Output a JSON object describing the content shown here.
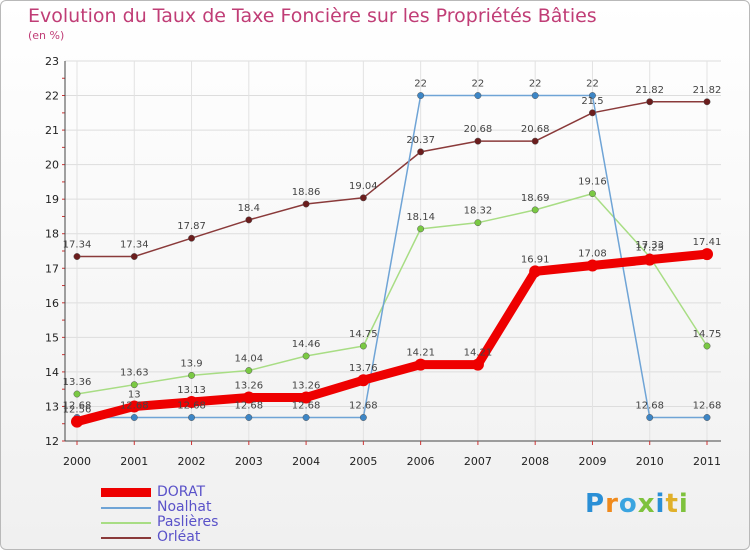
{
  "title": "Evolution du Taux de Taxe Foncière sur les Propriétés Bâties",
  "unit_label": "(en %)",
  "logo": {
    "text": "Proxiti",
    "letter_colors": [
      "#2a8fd6",
      "#f08a1c",
      "#3aa4e0",
      "#7ec23c",
      "#2a8fd6",
      "#e0b02a",
      "#7ec23c"
    ]
  },
  "chart_data": {
    "type": "line",
    "title": "Evolution du Taux de Taxe Foncière sur les Propriétés Bâties",
    "ylabel": "(en %)",
    "xlabel": "",
    "ylim": [
      12,
      23
    ],
    "yticks": [
      "12",
      "13",
      "14",
      "15",
      "16",
      "17",
      "18",
      "19",
      "20",
      "21",
      "22",
      "23"
    ],
    "categories": [
      "2000",
      "2001",
      "2002",
      "2003",
      "2004",
      "2005",
      "2006",
      "2007",
      "2008",
      "2009",
      "2010",
      "2011"
    ],
    "series": [
      {
        "name": "DORAT",
        "color": "#ee0000",
        "dot": "#ee0000",
        "values": [
          12.56,
          13,
          13.13,
          13.26,
          13.26,
          13.76,
          14.21,
          14.21,
          16.91,
          17.08,
          17.25,
          17.41
        ],
        "labels": [
          "12.56",
          "13",
          "13.13",
          "13.26",
          "13.26",
          "13.76",
          "14.21",
          "14.21",
          "16.91",
          "17.08",
          "17.25",
          "17.41"
        ]
      },
      {
        "name": "Noalhat",
        "color": "#6fa4d6",
        "dot": "#3d86c6",
        "values": [
          12.68,
          12.68,
          12.68,
          12.68,
          12.68,
          12.68,
          22,
          22,
          22,
          22,
          12.68,
          12.68
        ],
        "labels": [
          "12.68",
          "12.68",
          "12.68",
          "12.68",
          "12.68",
          "12.68",
          "22",
          "22",
          "22",
          "22",
          "12.68",
          "12.68"
        ]
      },
      {
        "name": "Paslières",
        "color": "#a8dd84",
        "dot": "#7ac943",
        "values": [
          13.36,
          13.63,
          13.9,
          14.04,
          14.46,
          14.75,
          18.14,
          18.32,
          18.69,
          19.16,
          17.33,
          14.75
        ],
        "labels": [
          "13.36",
          "13.63",
          "13.9",
          "14.04",
          "14.46",
          "14.75",
          "18.14",
          "18.32",
          "18.69",
          "19.16",
          "17.33",
          "14.75"
        ]
      },
      {
        "name": "Orléat",
        "color": "#8a3a3a",
        "dot": "#6b1d1d",
        "values": [
          17.34,
          17.34,
          17.87,
          18.4,
          18.86,
          19.04,
          20.37,
          20.68,
          20.68,
          21.5,
          21.82,
          21.82
        ],
        "labels": [
          "17.34",
          "17.34",
          "17.87",
          "18.4",
          "18.86",
          "19.04",
          "20.37",
          "20.68",
          "20.68",
          "21.5",
          "21.82",
          "21.82"
        ]
      }
    ],
    "legend_position": "bottom-left"
  }
}
